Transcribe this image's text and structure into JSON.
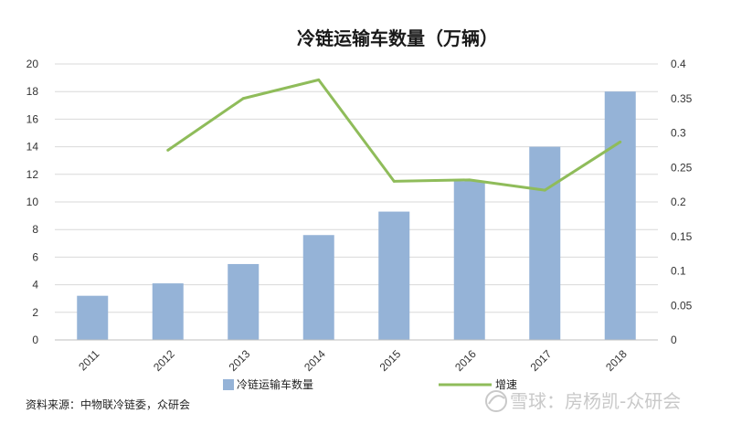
{
  "chart_data": {
    "type": "bar",
    "title": "冷链运输车数量（万辆）",
    "categories": [
      "2011",
      "2012",
      "2013",
      "2014",
      "2015",
      "2016",
      "2017",
      "2018"
    ],
    "series": [
      {
        "name": "冷链运输车数量",
        "type": "bar",
        "axis": "left",
        "color": "#95b3d7",
        "values": [
          3.2,
          4.1,
          5.5,
          7.6,
          9.3,
          11.5,
          14.0,
          18.0
        ]
      },
      {
        "name": "增速",
        "type": "line",
        "axis": "right",
        "color": "#8fbc5a",
        "values": [
          null,
          0.275,
          0.35,
          0.377,
          0.23,
          0.232,
          0.217,
          0.287
        ]
      }
    ],
    "y_left": {
      "ylim": [
        0,
        20
      ],
      "ticks": [
        "0",
        "2",
        "4",
        "6",
        "8",
        "10",
        "12",
        "14",
        "16",
        "18",
        "20"
      ]
    },
    "y_right": {
      "ylim": [
        0,
        0.4
      ],
      "ticks": [
        "0",
        "0.05",
        "0.1",
        "0.15",
        "0.2",
        "0.25",
        "0.3",
        "0.35",
        "0.4"
      ]
    },
    "grid": true,
    "legend_position": "bottom"
  },
  "source_note": "资料来源：中物联冷链委，众研会",
  "watermark": "雪球：房杨凯-众研会"
}
